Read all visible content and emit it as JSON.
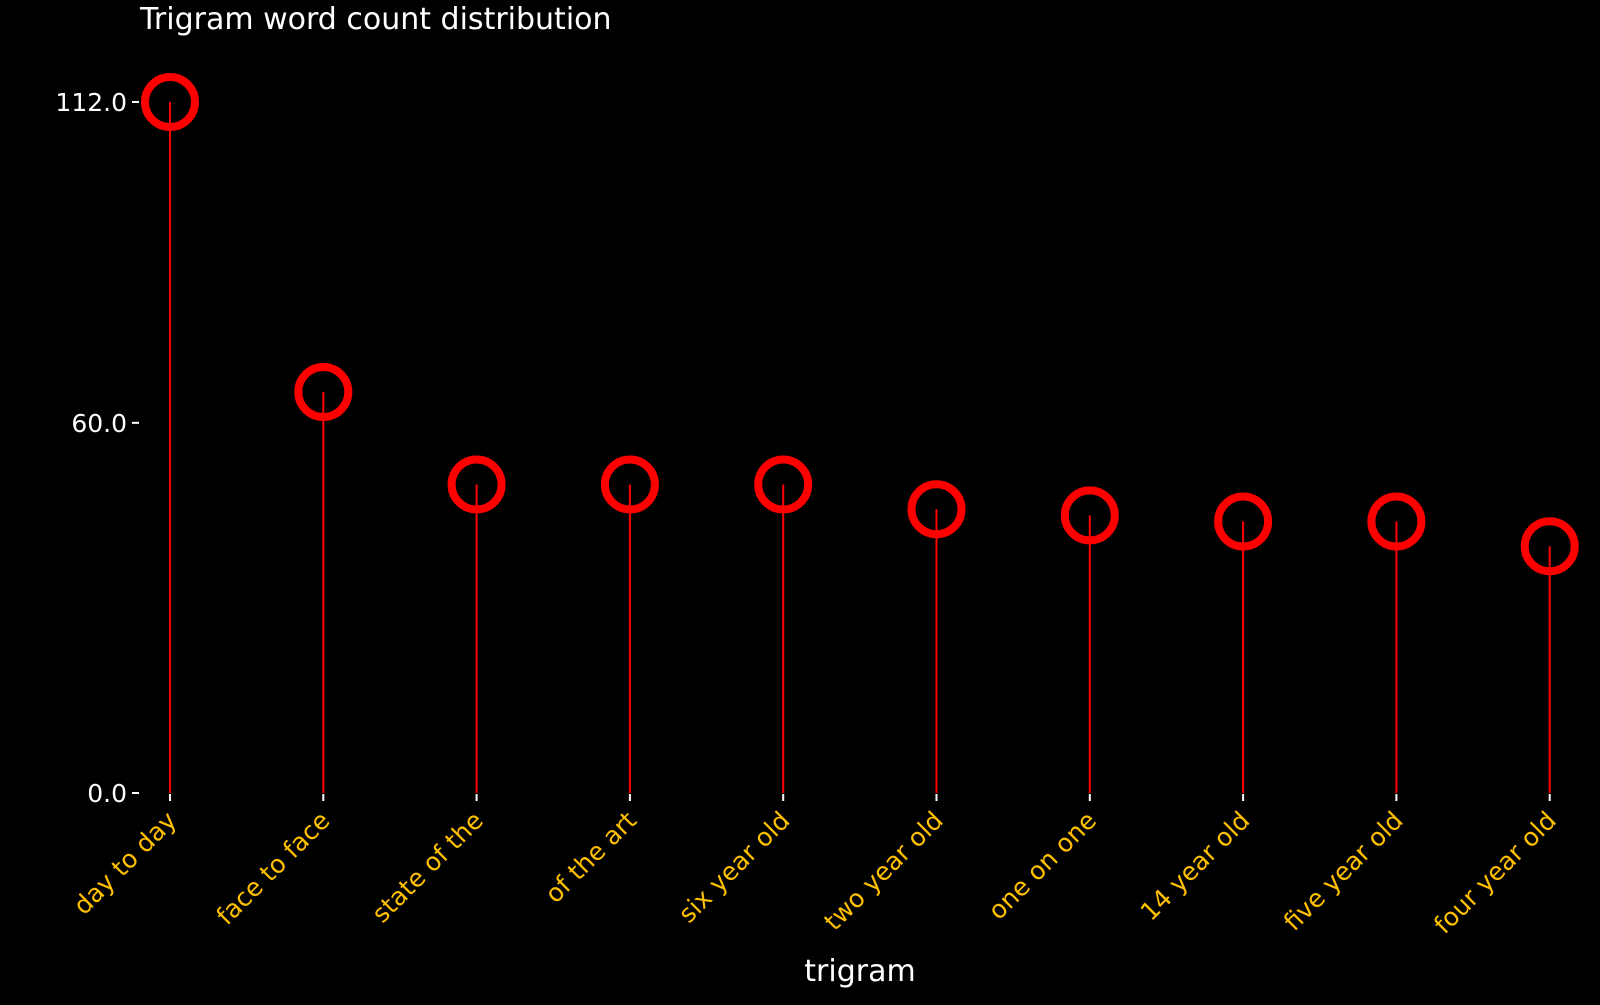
{
  "chart_data": {
    "type": "lollipop",
    "title": "Trigram word count distribution",
    "xlabel": "trigram",
    "ylabel": "",
    "categories": [
      "day to day",
      "face to face",
      "state of the",
      "of the art",
      "six year old",
      "two year old",
      "one on one",
      "14 year old",
      "five year old",
      "four year old"
    ],
    "values": [
      112,
      65,
      50,
      50,
      50,
      46,
      45,
      44,
      44,
      40
    ],
    "y_ticks": [
      0,
      60,
      112
    ],
    "y_tick_labels": [
      "0.0",
      "60.0",
      "112.0"
    ],
    "ylim": [
      0,
      112
    ],
    "grid": false,
    "colors": {
      "background": "#000000",
      "stem": "#ff0000",
      "marker": "#ff0000",
      "title": "#ffffff",
      "axis_text": "#ffffff",
      "category_text": "#ffc000"
    }
  }
}
